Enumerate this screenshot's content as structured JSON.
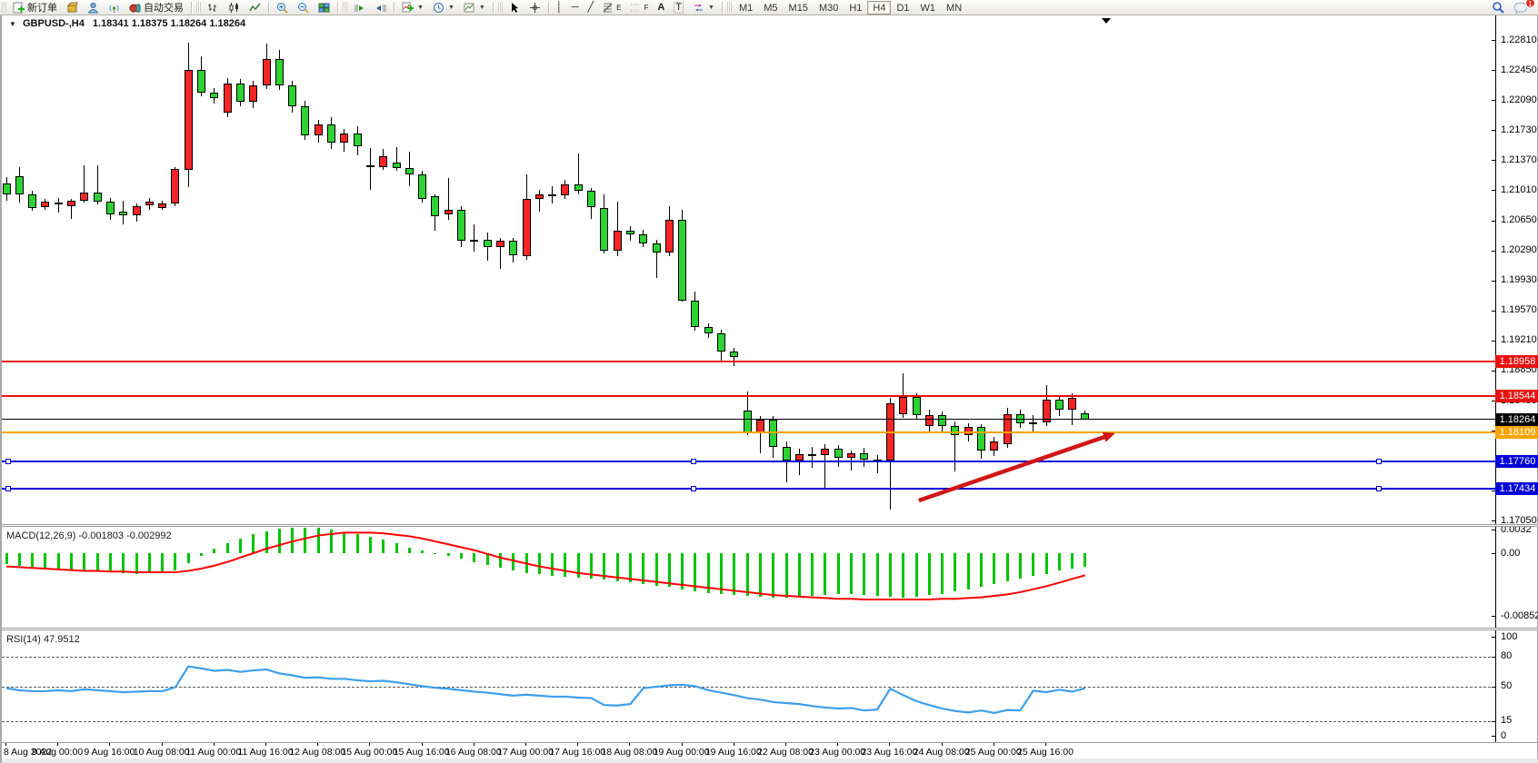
{
  "toolbar": {
    "new_order_label": "新订单",
    "autotrade_label": "自动交易",
    "timeframes": [
      "M1",
      "M5",
      "M15",
      "M30",
      "H1",
      "H4",
      "D1",
      "W1",
      "MN"
    ],
    "active_timeframe": "H4",
    "notification_count": "1",
    "text_tool_label": "A",
    "label_tool_label": "T",
    "fibo_tag": "E",
    "channel_tag": "F"
  },
  "chart": {
    "symbol_title": "GBPUSD-,H4",
    "ohlc": "1.18341 1.18375 1.18264 1.18264"
  },
  "chart_data": {
    "type": "candlestick",
    "symbol": "GBPUSD",
    "timeframe": "H4",
    "price_axis_ticks": [
      "1.22810",
      "1.22450",
      "1.22090",
      "1.21730",
      "1.21370",
      "1.21010",
      "1.20650",
      "1.20290",
      "1.19930",
      "1.19570",
      "1.19210",
      "1.18850",
      "1.18490",
      "1.18130",
      "1.17770",
      "1.17410",
      "1.17050"
    ],
    "time_labels": [
      "8 Aug 2022",
      "9 Aug 00:00",
      "9 Aug 16:00",
      "10 Aug 08:00",
      "11 Aug 00:00",
      "11 Aug 16:00",
      "12 Aug 08:00",
      "15 Aug 00:00",
      "15 Aug 16:00",
      "16 Aug 08:00",
      "17 Aug 00:00",
      "17 Aug 16:00",
      "18 Aug 08:00",
      "19 Aug 00:00",
      "19 Aug 16:00",
      "22 Aug 08:00",
      "23 Aug 00:00",
      "23 Aug 16:00",
      "24 Aug 08:00",
      "25 Aug 00:00",
      "25 Aug 16:00"
    ],
    "levels": [
      {
        "price": "1.18958",
        "value": 1.18958,
        "color": "#e81010",
        "thickness": 2,
        "badge_bg": "#e81010",
        "handles": false
      },
      {
        "price": "1.18544",
        "value": 1.18544,
        "color": "#e81010",
        "thickness": 2,
        "badge_bg": "#e81010",
        "handles": false
      },
      {
        "price": "1.18264",
        "value": 1.18264,
        "color": "#000000",
        "thickness": 1,
        "badge_bg": "#000000",
        "handles": false
      },
      {
        "price": "1.18109",
        "value": 1.18109,
        "color": "#f7a400",
        "thickness": 2,
        "badge_bg": "#f7a400",
        "handles": false
      },
      {
        "price": "1.17760",
        "value": 1.1776,
        "color": "#0000d8",
        "thickness": 2,
        "badge_bg": "#0000d8",
        "handles": true
      },
      {
        "price": "1.17434",
        "value": 1.17434,
        "color": "#0000d8",
        "thickness": 2,
        "badge_bg": "#0000d8",
        "handles": true
      }
    ],
    "candles": [
      [
        1.2109,
        1.2117,
        1.2088,
        1.2096
      ],
      [
        1.2118,
        1.2129,
        1.2086,
        1.2096
      ],
      [
        1.2096,
        1.21,
        1.2076,
        1.208
      ],
      [
        1.2081,
        1.2091,
        1.2078,
        1.2087
      ],
      [
        1.2085,
        1.2092,
        1.2074,
        1.2086
      ],
      [
        1.2082,
        1.2091,
        1.2067,
        1.2088
      ],
      [
        1.2088,
        1.2131,
        1.2086,
        1.2098
      ],
      [
        1.2098,
        1.2131,
        1.2084,
        1.2087
      ],
      [
        1.2087,
        1.2092,
        1.2066,
        1.2072
      ],
      [
        1.2075,
        1.2088,
        1.206,
        1.2071
      ],
      [
        1.2071,
        1.2085,
        1.2063,
        1.2082
      ],
      [
        1.2083,
        1.2092,
        1.2078,
        1.2087
      ],
      [
        1.208,
        1.2088,
        1.2078,
        1.2085
      ],
      [
        1.2085,
        1.2129,
        1.2082,
        1.2126
      ],
      [
        1.2125,
        1.2278,
        1.2105,
        1.2245
      ],
      [
        1.2245,
        1.2261,
        1.2213,
        1.2218
      ],
      [
        1.2218,
        1.2223,
        1.2205,
        1.2211
      ],
      [
        1.2194,
        1.2235,
        1.2189,
        1.2229
      ],
      [
        1.2229,
        1.2234,
        1.2202,
        1.2207
      ],
      [
        1.2207,
        1.2232,
        1.2199,
        1.2227
      ],
      [
        1.2227,
        1.2277,
        1.2222,
        1.2258
      ],
      [
        1.2258,
        1.2269,
        1.2221,
        1.2227
      ],
      [
        1.2227,
        1.2232,
        1.2194,
        1.2202
      ],
      [
        1.2202,
        1.2208,
        1.2161,
        1.2167
      ],
      [
        1.2167,
        1.2185,
        1.2158,
        1.218
      ],
      [
        1.218,
        1.2189,
        1.215,
        1.2158
      ],
      [
        1.2158,
        1.2174,
        1.2147,
        1.2169
      ],
      [
        1.2169,
        1.2178,
        1.2143,
        1.2154
      ],
      [
        1.2131,
        1.2151,
        1.2101,
        1.2131
      ],
      [
        1.2129,
        1.215,
        1.2125,
        1.2142
      ],
      [
        1.2134,
        1.2153,
        1.2124,
        1.2128
      ],
      [
        1.2128,
        1.2147,
        1.2106,
        1.212
      ],
      [
        1.212,
        1.2124,
        1.2086,
        1.2091
      ],
      [
        1.2094,
        1.2096,
        1.2053,
        1.207
      ],
      [
        1.2072,
        1.2116,
        1.2065,
        1.2077
      ],
      [
        1.2077,
        1.2082,
        1.2033,
        1.204
      ],
      [
        1.204,
        1.206,
        1.2028,
        1.2042
      ],
      [
        1.2042,
        1.205,
        1.2017,
        1.2033
      ],
      [
        1.2033,
        1.2044,
        1.2007,
        1.204
      ],
      [
        1.204,
        1.2044,
        1.2014,
        1.2023
      ],
      [
        1.2022,
        1.212,
        1.2018,
        1.2091
      ],
      [
        1.2091,
        1.2101,
        1.2075,
        1.2096
      ],
      [
        1.2096,
        1.2106,
        1.2085,
        1.2095
      ],
      [
        1.2095,
        1.2113,
        1.2091,
        1.2108
      ],
      [
        1.2108,
        1.2145,
        1.2096,
        1.21
      ],
      [
        1.21,
        1.2104,
        1.2067,
        1.2081
      ],
      [
        1.208,
        1.2096,
        1.2025,
        1.2029
      ],
      [
        1.2029,
        1.2087,
        1.2022,
        1.2053
      ],
      [
        1.2053,
        1.2058,
        1.204,
        1.2048
      ],
      [
        1.2048,
        1.2054,
        1.2033,
        1.2037
      ],
      [
        1.2037,
        1.2042,
        1.1996,
        1.2026
      ],
      [
        1.2026,
        1.2082,
        1.2022,
        1.2066
      ],
      [
        1.2066,
        1.2078,
        1.1968,
        1.1969
      ],
      [
        1.1969,
        1.198,
        1.1933,
        1.1937
      ],
      [
        1.1937,
        1.1941,
        1.1924,
        1.193
      ],
      [
        1.193,
        1.1934,
        1.1896,
        1.1908
      ],
      [
        1.1908,
        1.1912,
        1.189,
        1.1901
      ],
      [
        1.1837,
        1.186,
        1.1808,
        1.1811
      ],
      [
        1.1811,
        1.1831,
        1.1786,
        1.1826
      ],
      [
        1.1826,
        1.183,
        1.178,
        1.1794
      ],
      [
        1.1794,
        1.18,
        1.1751,
        1.1777
      ],
      [
        1.1777,
        1.1791,
        1.176,
        1.1785
      ],
      [
        1.1785,
        1.1794,
        1.1768,
        1.1784
      ],
      [
        1.1784,
        1.1797,
        1.1742,
        1.1791
      ],
      [
        1.1791,
        1.1796,
        1.177,
        1.178
      ],
      [
        1.178,
        1.1789,
        1.1765,
        1.1786
      ],
      [
        1.1786,
        1.1792,
        1.177,
        1.1778
      ],
      [
        1.1778,
        1.1784,
        1.1762,
        1.1775
      ],
      [
        1.1777,
        1.1852,
        1.1718,
        1.1846
      ],
      [
        1.1833,
        1.1882,
        1.1828,
        1.1853
      ],
      [
        1.1853,
        1.1858,
        1.1826,
        1.1832
      ],
      [
        1.1819,
        1.1838,
        1.1812,
        1.1832
      ],
      [
        1.1832,
        1.1836,
        1.181,
        1.1818
      ],
      [
        1.1818,
        1.1824,
        1.1764,
        1.1808
      ],
      [
        1.1808,
        1.1822,
        1.18,
        1.1817
      ],
      [
        1.1817,
        1.1821,
        1.1779,
        1.1789
      ],
      [
        1.1789,
        1.1806,
        1.1783,
        1.18
      ],
      [
        1.1797,
        1.184,
        1.1792,
        1.1833
      ],
      [
        1.1833,
        1.1838,
        1.1816,
        1.1822
      ],
      [
        1.1822,
        1.1832,
        1.1812,
        1.1823
      ],
      [
        1.1823,
        1.1868,
        1.1818,
        1.185
      ],
      [
        1.185,
        1.1856,
        1.183,
        1.1838
      ],
      [
        1.1838,
        1.1858,
        1.182,
        1.1852
      ],
      [
        1.18341,
        1.18375,
        1.18264,
        1.18264
      ]
    ],
    "indicators": [
      {
        "name": "MACD",
        "label": "MACD(12,26,9) -0.001803 -0.002992",
        "axis_ticks": [
          "0.0032",
          "0.00",
          "-0.008529"
        ],
        "histogram": [
          -0.0015,
          -0.0017,
          -0.0019,
          -0.002,
          -0.0022,
          -0.0023,
          -0.0024,
          -0.0025,
          -0.0026,
          -0.0027,
          -0.0028,
          -0.0027,
          -0.0026,
          -0.0023,
          -0.0014,
          -0.0004,
          0.0006,
          0.0014,
          0.002,
          0.0026,
          0.003,
          0.0033,
          0.0035,
          0.0035,
          0.0034,
          0.0032,
          0.0029,
          0.0026,
          0.0022,
          0.0018,
          0.0013,
          0.0008,
          0.0004,
          0.0,
          -0.0004,
          -0.0008,
          -0.0012,
          -0.0016,
          -0.002,
          -0.0024,
          -0.0027,
          -0.0029,
          -0.0031,
          -0.0032,
          -0.0033,
          -0.0034,
          -0.0036,
          -0.0038,
          -0.004,
          -0.0042,
          -0.0044,
          -0.0046,
          -0.0049,
          -0.0052,
          -0.0054,
          -0.0056,
          -0.0057,
          -0.0058,
          -0.0059,
          -0.006,
          -0.006,
          -0.0059,
          -0.0058,
          -0.0057,
          -0.0056,
          -0.0056,
          -0.0057,
          -0.0058,
          -0.0059,
          -0.006,
          -0.0059,
          -0.0057,
          -0.0055,
          -0.0052,
          -0.0049,
          -0.0046,
          -0.0042,
          -0.0038,
          -0.0034,
          -0.0031,
          -0.0028,
          -0.0024,
          -0.0021,
          -0.0018
        ],
        "signal": [
          -0.0018,
          -0.0019,
          -0.002,
          -0.0021,
          -0.0022,
          -0.0023,
          -0.0024,
          -0.0024,
          -0.0025,
          -0.0025,
          -0.0026,
          -0.0026,
          -0.0026,
          -0.0026,
          -0.0024,
          -0.0021,
          -0.0017,
          -0.0012,
          -0.0006,
          0.0,
          0.0006,
          0.0011,
          0.0016,
          0.002,
          0.0024,
          0.0026,
          0.0028,
          0.0028,
          0.0028,
          0.0027,
          0.0025,
          0.0023,
          0.002,
          0.0016,
          0.0012,
          0.0008,
          0.0004,
          -0.0001,
          -0.0006,
          -0.001,
          -0.0014,
          -0.0018,
          -0.0021,
          -0.0024,
          -0.0027,
          -0.0029,
          -0.0031,
          -0.0033,
          -0.0035,
          -0.0037,
          -0.0039,
          -0.0041,
          -0.0043,
          -0.0045,
          -0.0047,
          -0.0049,
          -0.0051,
          -0.0053,
          -0.0055,
          -0.0057,
          -0.0058,
          -0.0059,
          -0.006,
          -0.0061,
          -0.0062,
          -0.0062,
          -0.0063,
          -0.0063,
          -0.0063,
          -0.0063,
          -0.0063,
          -0.0063,
          -0.0062,
          -0.0062,
          -0.0061,
          -0.006,
          -0.0058,
          -0.0056,
          -0.0053,
          -0.0049,
          -0.0045,
          -0.004,
          -0.0035,
          -0.003
        ]
      },
      {
        "name": "RSI",
        "label": "RSI(14) 47.9512",
        "axis_ticks": [
          "100",
          "80",
          "50",
          "15",
          "0"
        ],
        "levels": [
          80,
          50,
          15
        ],
        "values": [
          48,
          46,
          45,
          45,
          46,
          45,
          47,
          46,
          45,
          44,
          44.5,
          45,
          45,
          49,
          70,
          68,
          65.5,
          66.5,
          64.5,
          66,
          67,
          63,
          61,
          58.5,
          59,
          57.5,
          57.5,
          56,
          55,
          55.5,
          54,
          52,
          50,
          48.5,
          47.5,
          46,
          44.5,
          43.5,
          42,
          40.5,
          41.5,
          40.5,
          39.5,
          39.5,
          38.5,
          38,
          31,
          30.5,
          32,
          48,
          49.5,
          51,
          51.5,
          50,
          46,
          43.5,
          41,
          38,
          36.5,
          34,
          33,
          32,
          30,
          28.5,
          27.5,
          28,
          25.5,
          26.5,
          47.5,
          41,
          35,
          31,
          27.5,
          25,
          23.5,
          25.5,
          23,
          26,
          25.5,
          45.5,
          44,
          46.5,
          44.5,
          47.95
        ]
      }
    ],
    "annotations": [
      {
        "type": "trend-arrow",
        "color": "#d01616",
        "from_bar": 70.2,
        "from_price": 1.17293,
        "to_bar": 85.3,
        "to_price": 1.18098
      }
    ]
  },
  "colors": {
    "bull": "#f42525",
    "bear": "#2ed234",
    "macd_histogram": "#00c400",
    "macd_signal": "#ff0000",
    "rsi_line": "#3e9feb",
    "level_red": "#e81010",
    "level_orange": "#f7a400",
    "level_blue": "#0000d8"
  }
}
